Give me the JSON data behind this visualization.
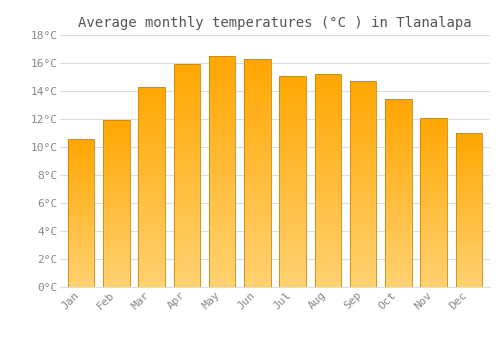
{
  "months": [
    "Jan",
    "Feb",
    "Mar",
    "Apr",
    "May",
    "Jun",
    "Jul",
    "Aug",
    "Sep",
    "Oct",
    "Nov",
    "Dec"
  ],
  "temperatures": [
    10.6,
    11.9,
    14.3,
    15.9,
    16.5,
    16.3,
    15.1,
    15.2,
    14.7,
    13.4,
    12.1,
    11.0
  ],
  "bar_color_top": "#FFA500",
  "bar_color_bottom": "#FFD070",
  "bar_edge_color": "#CC8800",
  "background_color": "#FFFFFF",
  "plot_bg_color": "#FAFAFA",
  "grid_color": "#DDDDDD",
  "title": "Average monthly temperatures (°C ) in Tlanalapa",
  "title_fontsize": 10,
  "title_color": "#555555",
  "tick_color": "#888888",
  "label_fontsize": 8,
  "ylim": [
    0,
    18
  ],
  "yticks": [
    0,
    2,
    4,
    6,
    8,
    10,
    12,
    14,
    16,
    18
  ],
  "ytick_labels": [
    "0°C",
    "2°C",
    "4°C",
    "6°C",
    "8°C",
    "10°C",
    "12°C",
    "14°C",
    "16°C",
    "18°C"
  ]
}
